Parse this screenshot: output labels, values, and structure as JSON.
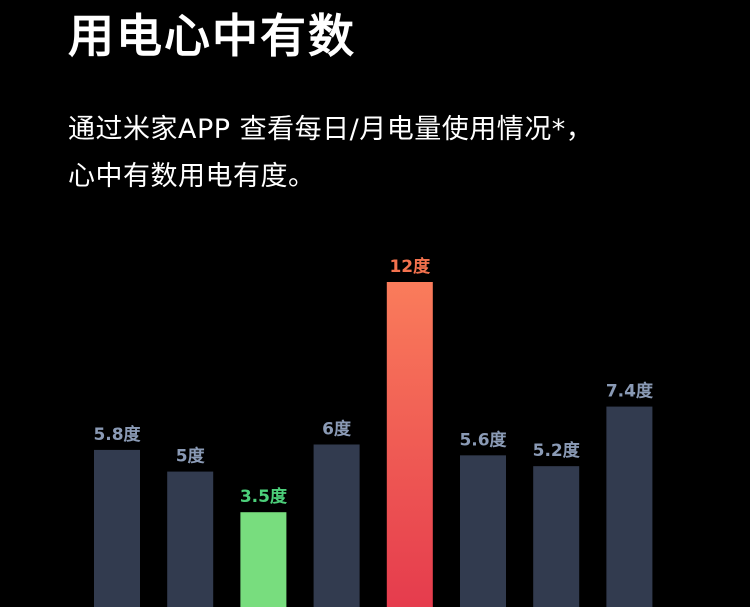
{
  "header": {
    "title": "用电心中有数",
    "desc_line1": "通过米家APP 查看每日/月电量使用情况*，",
    "desc_line2": "心中有数用电有度。"
  },
  "colors": {
    "background": "#000000",
    "bar_default": "#323b4f",
    "label_default": "#8a9ab5",
    "bar_min": "#78dd7e",
    "label_min": "#4ccf7a",
    "bar_max_top": "#fa7c5b",
    "bar_max_bottom": "#e53b4d",
    "label_max": "#f4724e"
  },
  "chart_data": {
    "type": "bar",
    "unit": "度",
    "categories": [
      "",
      "",
      "",
      "",
      "",
      "",
      "",
      ""
    ],
    "values": [
      5.8,
      5,
      3.5,
      6,
      12,
      5.6,
      5.2,
      7.4
    ],
    "labels": [
      "5.8度",
      "5度",
      "3.5度",
      "6度",
      "12度",
      "5.6度",
      "5.2度",
      "7.4度"
    ],
    "highlight_min_index": 2,
    "highlight_max_index": 4,
    "grid": false,
    "axes_visible": false
  }
}
